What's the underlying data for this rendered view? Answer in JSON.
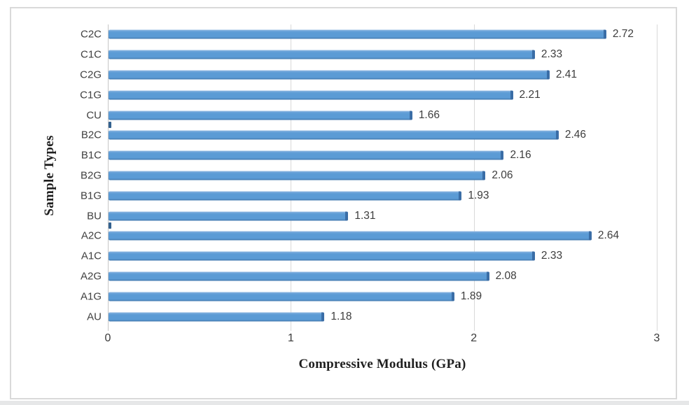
{
  "chart_data": {
    "type": "bar",
    "orientation": "horizontal",
    "title": "",
    "xlabel": "Compressive Modulus (GPa)",
    "ylabel": "Sample Types",
    "categories": [
      "C2C",
      "C1C",
      "C2G",
      "C1G",
      "CU",
      "B2C",
      "B1C",
      "B2G",
      "B1G",
      "BU",
      "A2C",
      "A1C",
      "A2G",
      "A1G",
      "AU"
    ],
    "values": [
      2.72,
      2.33,
      2.41,
      2.21,
      1.66,
      2.46,
      2.16,
      2.06,
      1.93,
      1.31,
      2.64,
      2.33,
      2.08,
      1.89,
      1.18
    ],
    "data_labels": [
      "2.72",
      "2.33",
      "2.41",
      "2.21",
      "1.66",
      "2.46",
      "2.16",
      "2.06",
      "1.93",
      "1.31",
      "2.64",
      "2.33",
      "2.08",
      "1.89",
      "1.18"
    ],
    "xlim": [
      0,
      3
    ],
    "x_ticks": [
      "0",
      "1",
      "2",
      "3"
    ],
    "grid": "vertical",
    "legend": "none",
    "group_separators_after": [
      4,
      9
    ],
    "colors": {
      "bar": "#5b9bd5",
      "bar_end_cap": "#3a6da6",
      "gridline": "#d9d9d9",
      "axis_line": "#c6c6c6",
      "separator": "#33618f",
      "label_text": "#404040",
      "title_text": "#1f1f1f",
      "frame_border": "#d9d9d9",
      "page_strip": "#e6e7e8"
    }
  }
}
